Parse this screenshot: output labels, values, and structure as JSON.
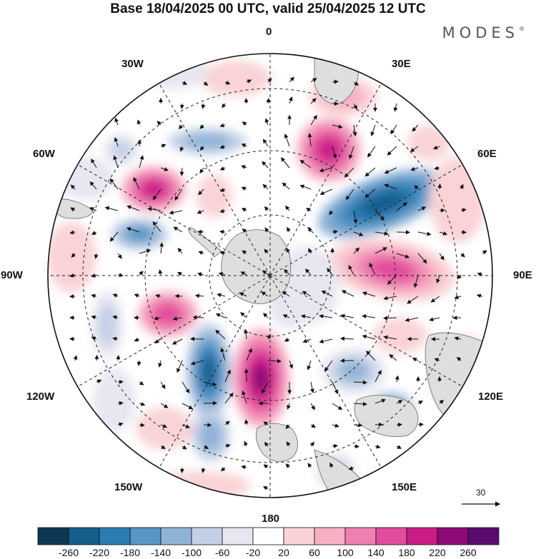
{
  "title": "Base 18/04/2025 00 UTC, valid 25/04/2025 12 UTC",
  "brand": {
    "text": "MODES",
    "mark": "®"
  },
  "map": {
    "projection": "south-polar-stereographic",
    "longitude_labels": [
      "0",
      "30E",
      "60E",
      "90E",
      "120E",
      "150E",
      "180",
      "150W",
      "120W",
      "90W",
      "60W",
      "30W"
    ],
    "features": [
      "coastlines",
      "graticule",
      "contour-fill",
      "wind-vectors"
    ]
  },
  "reference_vector": {
    "value": "30"
  },
  "colorbar": {
    "ticks": [
      "-260",
      "-220",
      "-180",
      "-140",
      "-100",
      "-60",
      "-20",
      "20",
      "60",
      "100",
      "140",
      "180",
      "220",
      "260"
    ],
    "colors": [
      "#0d3754",
      "#155f8c",
      "#2b7cb3",
      "#5796c6",
      "#8fb3d7",
      "#c3d0e6",
      "#e7e6f1",
      "#ffffff",
      "#f9d3d6",
      "#f6b0c4",
      "#ef7fb0",
      "#e14c9c",
      "#c91c87",
      "#8f0a77",
      "#5a0c6e"
    ]
  },
  "colors": {
    "land": "#e0e0e0",
    "coast": "#555555"
  }
}
